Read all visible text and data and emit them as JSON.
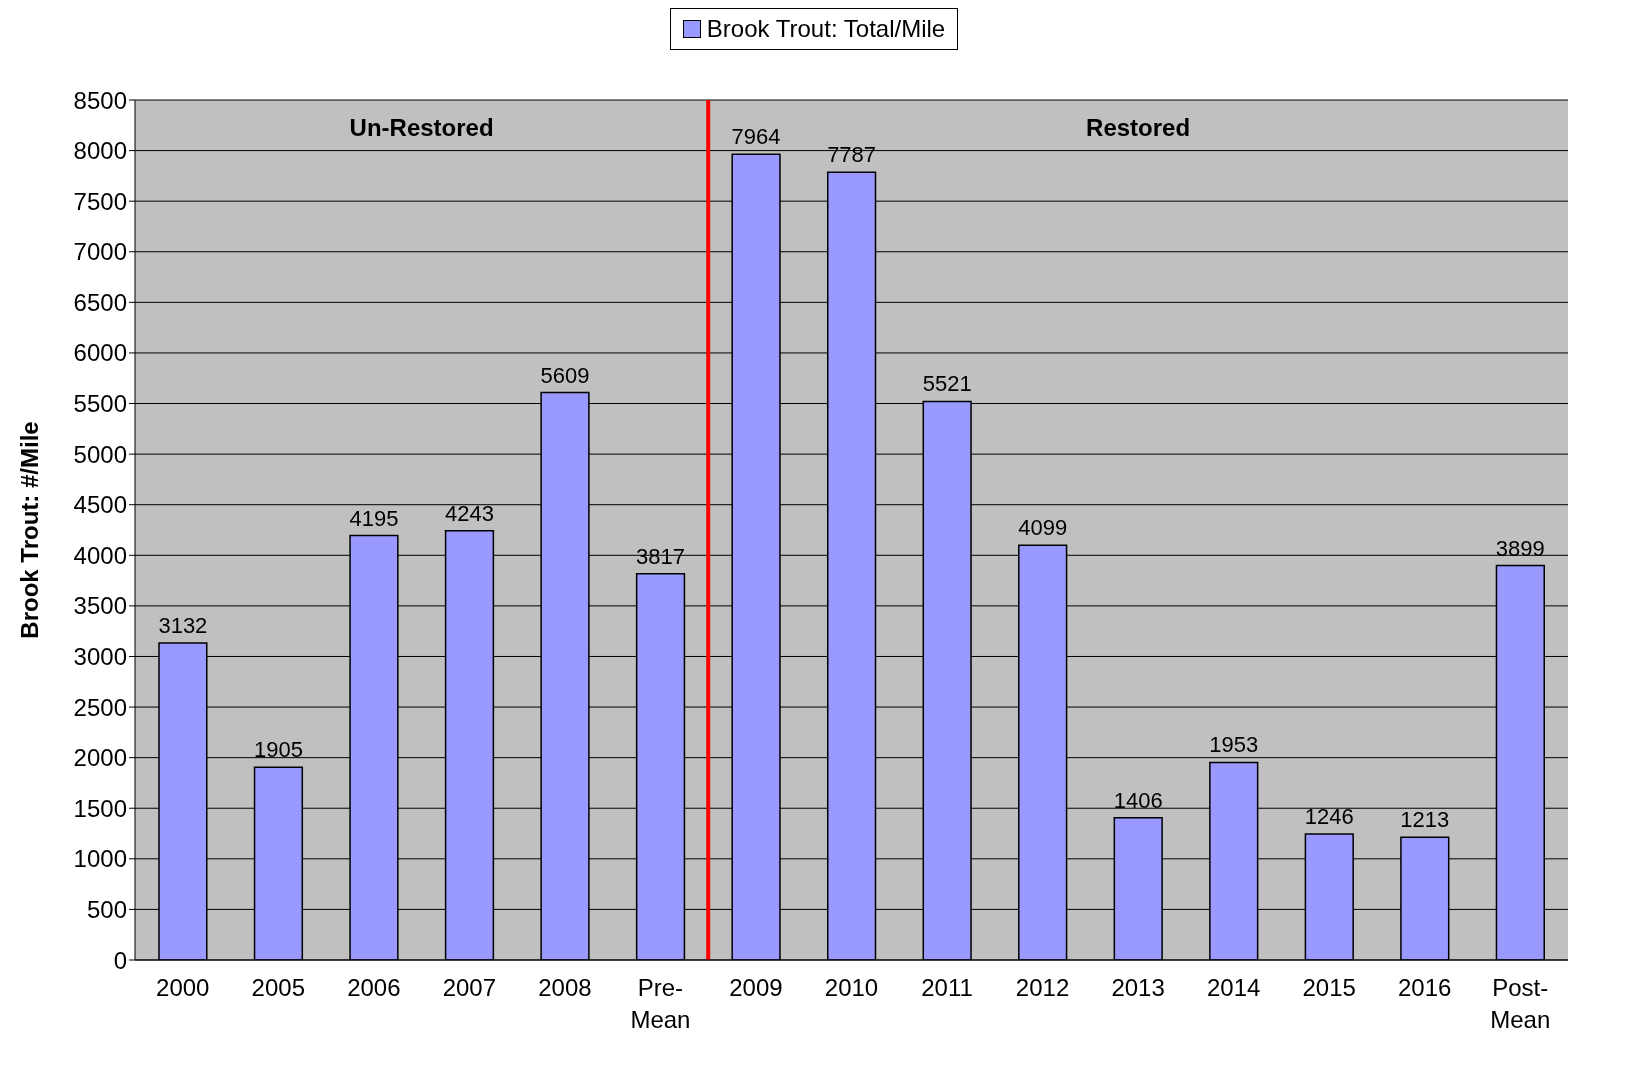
{
  "chart_data": {
    "type": "bar",
    "ylabel": "Brook Trout: #/Mile",
    "categories": [
      "2000",
      "2005",
      "2006",
      "2007",
      "2008",
      "Pre-\nMean",
      "2009",
      "2010",
      "2011",
      "2012",
      "2013",
      "2014",
      "2015",
      "2016",
      "Post-\nMean"
    ],
    "series": [
      {
        "name": "Brook Trout: Total/Mile",
        "color": "#9999ff",
        "values": [
          3132,
          1905,
          4195,
          4243,
          5609,
          3817,
          7964,
          7787,
          5521,
          4099,
          1406,
          1953,
          1246,
          1213,
          3899
        ]
      }
    ],
    "ylim": [
      0,
      8500
    ],
    "yticks": [
      0,
      500,
      1000,
      1500,
      2000,
      2500,
      3000,
      3500,
      4000,
      4500,
      5000,
      5500,
      6000,
      6500,
      7000,
      7500,
      8000,
      8500
    ],
    "grid": "y",
    "legend": "top",
    "data_labels": true,
    "ref_lines": [
      {
        "axis": "x",
        "value": "2009",
        "color": "#ff0000"
      }
    ],
    "annotations": [
      "Un-Restored",
      "Restored"
    ]
  }
}
